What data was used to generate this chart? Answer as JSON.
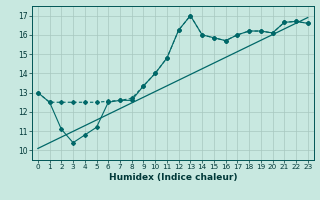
{
  "title": "",
  "xlabel": "Humidex (Indice chaleur)",
  "xlim": [
    -0.5,
    23.5
  ],
  "ylim": [
    9.5,
    17.5
  ],
  "yticks": [
    10,
    11,
    12,
    13,
    14,
    15,
    16,
    17
  ],
  "xticks": [
    0,
    1,
    2,
    3,
    4,
    5,
    6,
    7,
    8,
    9,
    10,
    11,
    12,
    13,
    14,
    15,
    16,
    17,
    18,
    19,
    20,
    21,
    22,
    23
  ],
  "bg_color": "#c8e8e0",
  "grid_color": "#a8c8c0",
  "line_color": "#006868",
  "series1_x": [
    0,
    1,
    2,
    3,
    4,
    5,
    6,
    7,
    8,
    9,
    10,
    11,
    12,
    13,
    14,
    15,
    16,
    17,
    18,
    19,
    20,
    21,
    22,
    23
  ],
  "series1_y": [
    13.0,
    12.5,
    11.1,
    10.4,
    10.8,
    11.2,
    12.5,
    12.6,
    12.6,
    13.35,
    14.0,
    14.8,
    16.25,
    17.0,
    16.0,
    15.85,
    15.7,
    16.0,
    16.2,
    16.2,
    16.1,
    16.65,
    16.7,
    16.6
  ],
  "series2_x": [
    0,
    1,
    2,
    3,
    4,
    5,
    6,
    7,
    8,
    9,
    10,
    11,
    12,
    13,
    14,
    15,
    16,
    17,
    18,
    19,
    20,
    21,
    22,
    23
  ],
  "series2_y": [
    13.0,
    12.5,
    12.5,
    12.5,
    12.5,
    12.5,
    12.55,
    12.6,
    12.7,
    13.35,
    14.0,
    14.8,
    16.25,
    17.0,
    16.0,
    15.85,
    15.7,
    16.0,
    16.2,
    16.2,
    16.1,
    16.65,
    16.7,
    16.6
  ],
  "trend_x": [
    0,
    23
  ],
  "trend_y": [
    10.1,
    16.9
  ]
}
